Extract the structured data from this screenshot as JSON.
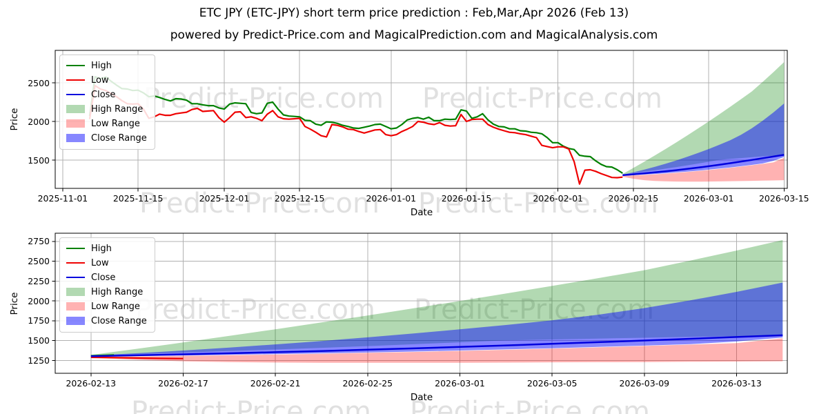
{
  "title": "ETC JPY (ETC-JPY) short term price prediction : Feb,Mar,Apr 2026 (Feb 13)",
  "subtitle": "powered by Predict-Price.com and MagicalPrediction.com and MagicalAnalysis.com",
  "watermark": {
    "text": "Predict-Price.com"
  },
  "colors": {
    "high": "#008000",
    "low": "#ee0000",
    "close": "#0000dd",
    "high_range": "rgba(0,128,0,0.30)",
    "low_range": "rgba(255,0,0,0.30)",
    "close_range": "rgba(0,0,255,0.47)",
    "grid": "#b0b0b0",
    "spine": "#000000"
  },
  "legend_items": [
    {
      "label": "High",
      "swatch": "line",
      "color": "high"
    },
    {
      "label": "Low",
      "swatch": "line",
      "color": "low"
    },
    {
      "label": "Close",
      "swatch": "line",
      "color": "close"
    },
    {
      "label": "High Range",
      "swatch": "patch",
      "color": "high_range"
    },
    {
      "label": "Low Range",
      "swatch": "patch",
      "color": "low_range"
    },
    {
      "label": "Close Range",
      "swatch": "patch",
      "color": "close_range"
    }
  ],
  "forecast": {
    "start_date": "2026-02-13",
    "day_offsets": [
      0,
      2,
      4,
      6,
      8,
      10,
      12,
      14,
      16,
      18,
      20,
      22,
      24,
      26,
      28,
      30
    ],
    "close": [
      1305,
      1316,
      1328,
      1341,
      1355,
      1370,
      1386,
      1403,
      1421,
      1440,
      1460,
      1481,
      1502,
      1524,
      1546,
      1568
    ],
    "close_hi": [
      1312,
      1342,
      1376,
      1413,
      1453,
      1496,
      1542,
      1591,
      1643,
      1698,
      1756,
      1827,
      1911,
      2008,
      2115,
      2232
    ],
    "close_lo": [
      1300,
      1306,
      1313,
      1321,
      1330,
      1340,
      1351,
      1363,
      1376,
      1390,
      1405,
      1421,
      1438,
      1456,
      1490,
      1540
    ],
    "high_hi": [
      1320,
      1398,
      1478,
      1560,
      1644,
      1730,
      1818,
      1908,
      2000,
      2094,
      2190,
      2288,
      2388,
      2510,
      2636,
      2768
    ],
    "high_lo": [
      1315,
      1332,
      1350,
      1369,
      1389,
      1410,
      1432,
      1455,
      1479,
      1504,
      1515,
      1526,
      1537,
      1548,
      1556,
      1562
    ],
    "low_hi": [
      1295,
      1301,
      1308,
      1316,
      1325,
      1335,
      1346,
      1358,
      1371,
      1385,
      1400,
      1416,
      1433,
      1451,
      1470,
      1530
    ],
    "low_lo": [
      1285,
      1258,
      1240,
      1230,
      1225,
      1222,
      1221,
      1221,
      1222,
      1224,
      1227,
      1229,
      1231,
      1234,
      1237,
      1240
    ]
  },
  "chart_data": [
    {
      "type": "line",
      "xlabel": "Date",
      "ylabel": "Price",
      "legend_position": "upper-left",
      "grid": true,
      "x_domain": [
        -1.4,
        134.6
      ],
      "y_domain": [
        1134,
        2920
      ],
      "x_ticks": [
        {
          "label": "2025-11-01",
          "day": 0
        },
        {
          "label": "2025-11-15",
          "day": 14
        },
        {
          "label": "2025-12-01",
          "day": 30
        },
        {
          "label": "2025-12-15",
          "day": 44
        },
        {
          "label": "2026-01-01",
          "day": 61
        },
        {
          "label": "2026-01-15",
          "day": 75
        },
        {
          "label": "2026-02-01",
          "day": 92
        },
        {
          "label": "2026-02-15",
          "day": 106
        },
        {
          "label": "2026-03-01",
          "day": 120
        },
        {
          "label": "2026-03-15",
          "day": 134
        }
      ],
      "y_ticks": [
        {
          "label": "1500",
          "value": 1500
        },
        {
          "label": "2000",
          "value": 2000
        },
        {
          "label": "2500",
          "value": 2500
        }
      ],
      "forecast_start_day": 104,
      "history": {
        "start_date": "2025-11-06",
        "start_day": 5,
        "high": [
          2070,
          2580,
          2550,
          2575,
          2520,
          2470,
          2425,
          2420,
          2400,
          2405,
          2370,
          2320,
          2330,
          2310,
          2285,
          2265,
          2295,
          2290,
          2275,
          2230,
          2230,
          2215,
          2205,
          2205,
          2175,
          2160,
          2225,
          2240,
          2235,
          2230,
          2115,
          2100,
          2110,
          2235,
          2250,
          2160,
          2085,
          2070,
          2065,
          2060,
          2015,
          2010,
          1965,
          1950,
          1995,
          1990,
          1975,
          1950,
          1935,
          1915,
          1910,
          1925,
          1940,
          1960,
          1965,
          1935,
          1905,
          1915,
          1960,
          2020,
          2040,
          2050,
          2030,
          2055,
          2010,
          2010,
          2030,
          2025,
          2030,
          2150,
          2135,
          2040,
          2060,
          2100,
          2020,
          1965,
          1935,
          1930,
          1905,
          1905,
          1880,
          1875,
          1860,
          1855,
          1840,
          1790,
          1725,
          1725,
          1680,
          1650,
          1637,
          1562,
          1550,
          1545,
          1490,
          1445,
          1415,
          1410,
          1375,
          1330
        ],
        "low": [
          2030,
          2465,
          2420,
          2400,
          2360,
          2320,
          2270,
          2230,
          2225,
          2230,
          2160,
          2040,
          2060,
          2095,
          2080,
          2080,
          2100,
          2110,
          2120,
          2155,
          2170,
          2130,
          2135,
          2140,
          2050,
          1990,
          2050,
          2120,
          2125,
          2050,
          2060,
          2040,
          2010,
          2095,
          2140,
          2060,
          2035,
          2030,
          2035,
          2040,
          1935,
          1900,
          1860,
          1815,
          1800,
          1960,
          1950,
          1930,
          1900,
          1895,
          1870,
          1850,
          1870,
          1890,
          1895,
          1830,
          1815,
          1830,
          1870,
          1900,
          1935,
          2000,
          1990,
          1970,
          1960,
          1985,
          1950,
          1940,
          1945,
          2090,
          2000,
          2025,
          2030,
          2030,
          1960,
          1925,
          1900,
          1880,
          1860,
          1855,
          1840,
          1830,
          1810,
          1790,
          1690,
          1675,
          1660,
          1672,
          1672,
          1643,
          1480,
          1190,
          1370,
          1375,
          1355,
          1325,
          1300,
          1275,
          1272,
          1280
        ]
      }
    },
    {
      "type": "line",
      "xlabel": "Date",
      "ylabel": "Price",
      "legend_position": "upper-left",
      "grid": true,
      "x_domain": [
        -1.55,
        30.2
      ],
      "y_domain": [
        1089,
        2854
      ],
      "x_ticks": [
        {
          "label": "2026-02-13",
          "day": 0
        },
        {
          "label": "2026-02-17",
          "day": 4
        },
        {
          "label": "2026-02-21",
          "day": 8
        },
        {
          "label": "2026-02-25",
          "day": 12
        },
        {
          "label": "2026-03-01",
          "day": 16
        },
        {
          "label": "2026-03-05",
          "day": 20
        },
        {
          "label": "2026-03-09",
          "day": 24
        },
        {
          "label": "2026-03-13",
          "day": 28
        }
      ],
      "y_ticks": [
        {
          "label": "1250",
          "value": 1250
        },
        {
          "label": "1500",
          "value": 1500
        },
        {
          "label": "1750",
          "value": 1750
        },
        {
          "label": "2000",
          "value": 2000
        },
        {
          "label": "2250",
          "value": 2250
        },
        {
          "label": "2500",
          "value": 2500
        },
        {
          "label": "2750",
          "value": 2750
        }
      ],
      "forecast_start_day": 0,
      "stubs": {
        "high": {
          "days": [
            0,
            1
          ],
          "values": [
            1310,
            1319
          ]
        },
        "low": {
          "days": [
            0,
            1,
            2,
            3,
            4
          ],
          "values": [
            1290,
            1286,
            1281,
            1277,
            1274
          ]
        }
      }
    }
  ]
}
